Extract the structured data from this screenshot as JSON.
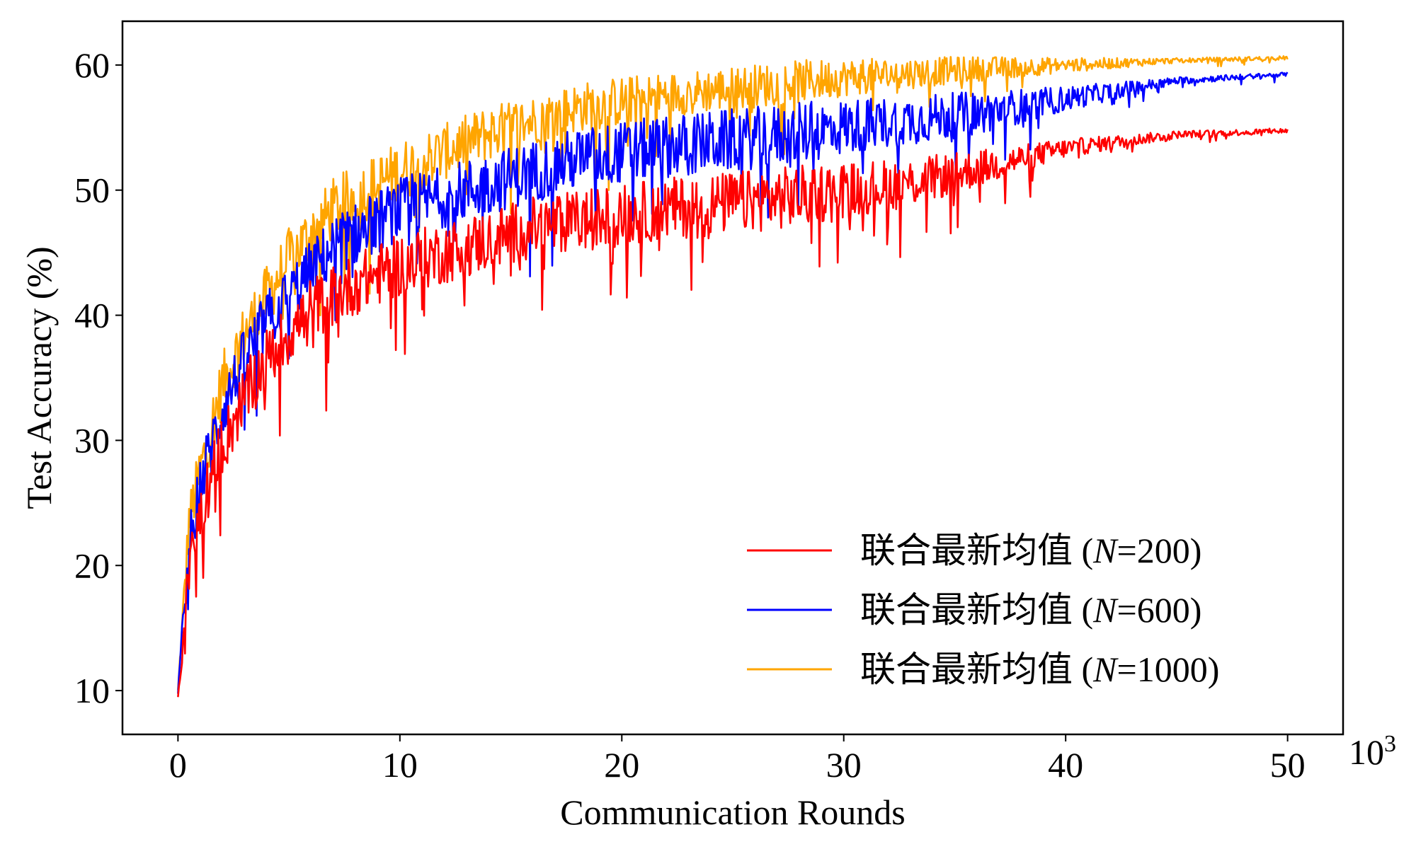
{
  "chart_data": {
    "type": "line",
    "title": "",
    "xlabel": "Communication Rounds",
    "ylabel": "Test Accuracy (%)",
    "x_multiplier_label": "10",
    "x_multiplier_exp": "3",
    "xlim": [
      -2.5,
      52.5
    ],
    "ylim": [
      6.5,
      63.5
    ],
    "xticks": [
      0,
      10,
      20,
      30,
      40,
      50
    ],
    "yticks": [
      10,
      20,
      30,
      40,
      50,
      60
    ],
    "grid": false,
    "legend_position": "lower-right",
    "series": [
      {
        "name": "联合最新均值 (N=1000)",
        "color": "#FFA500",
        "x": [
          0,
          0.5,
          1,
          2,
          3,
          4,
          5,
          6,
          7,
          8,
          10,
          12,
          14,
          16,
          18,
          20,
          22,
          25,
          28,
          30,
          33,
          36,
          40,
          45,
          50
        ],
        "y": [
          10,
          24,
          28,
          35,
          39,
          42,
          45,
          47,
          49,
          50,
          52,
          53.5,
          55,
          56,
          57,
          57.5,
          58,
          58.5,
          59,
          59.3,
          59.6,
          59.9,
          60.1,
          60.4,
          60.6
        ],
        "spread": [
          1,
          4,
          5,
          5,
          5,
          5,
          5,
          5,
          5,
          5,
          5,
          4.5,
          4.5,
          4,
          4,
          4,
          3.5,
          3.5,
          3.5,
          3,
          2.5,
          2,
          1.2,
          0.4,
          0.3
        ]
      },
      {
        "name": "联合最新均值 (N=600)",
        "color": "#0000FF",
        "x": [
          0,
          0.5,
          1,
          2,
          3,
          4,
          5,
          6,
          7,
          8,
          10,
          12,
          14,
          16,
          18,
          20,
          22,
          25,
          28,
          30,
          33,
          36,
          40,
          45,
          50
        ],
        "y": [
          10,
          22,
          27,
          33,
          37,
          40,
          42,
          44,
          46,
          47,
          49,
          50,
          51,
          52,
          53,
          53.5,
          54,
          54.5,
          55,
          55.5,
          56,
          56.5,
          57.5,
          58.8,
          59.3
        ],
        "spread": [
          1,
          4,
          5,
          5,
          5,
          5,
          5,
          5,
          5,
          5,
          5,
          5,
          5,
          5,
          5,
          5,
          5,
          5,
          5,
          4.5,
          4,
          3.5,
          2,
          0.6,
          0.3
        ]
      },
      {
        "name": "联合最新均值 (N=200)",
        "color": "#FF0000",
        "x": [
          0,
          0.5,
          1,
          2,
          3,
          4,
          5,
          6,
          7,
          8,
          10,
          12,
          14,
          16,
          18,
          20,
          22,
          25,
          28,
          30,
          33,
          36,
          40,
          45,
          50
        ],
        "y": [
          9.5,
          20,
          25,
          30,
          34,
          37,
          39,
          41,
          42,
          43,
          44.5,
          45.5,
          46.5,
          47.5,
          48,
          48.5,
          49,
          49.5,
          50,
          50.5,
          51,
          52,
          53.5,
          54.5,
          54.8
        ],
        "spread": [
          1,
          4,
          5,
          5,
          5,
          5,
          5,
          5,
          5,
          5,
          5,
          5,
          5,
          5,
          5,
          5,
          5,
          5,
          5,
          4.5,
          4,
          3,
          1.5,
          0.6,
          0.4
        ]
      }
    ],
    "legend": [
      {
        "label": "联合最新均值 (",
        "var": "N",
        "rest": "=200)",
        "color": "#FF0000"
      },
      {
        "label": "联合最新均值 (",
        "var": "N",
        "rest": "=600)",
        "color": "#0000FF"
      },
      {
        "label": "联合最新均值 (",
        "var": "N",
        "rest": "=1000)",
        "color": "#FFA500"
      }
    ]
  }
}
